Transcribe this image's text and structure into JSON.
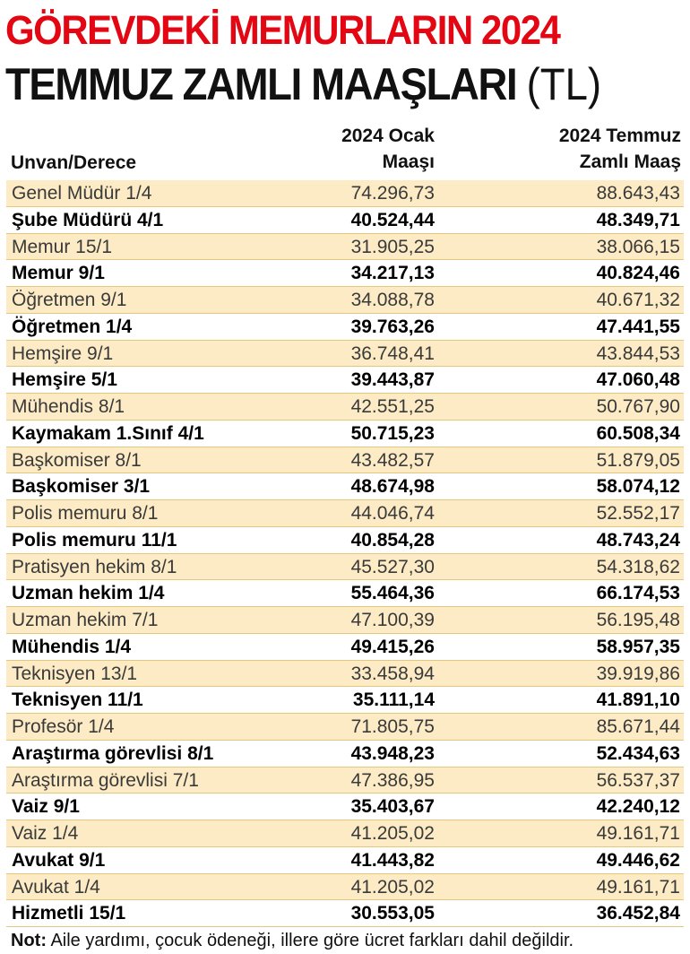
{
  "title": {
    "line1": "GÖREVDEKİ MEMURLARIN 2024",
    "line2": "TEMMUZ ZAMLI MAAŞLARI",
    "unit": "(TL)"
  },
  "headers": {
    "col0": "Unvan/Derece",
    "col1_line1": "2024 Ocak",
    "col1_line2": "Maaşı",
    "col2_line1": "2024 Temmuz",
    "col2_line2": "Zamlı Maaş"
  },
  "rows": [
    [
      "Genel Müdür 1/4",
      "74.296,73",
      "88.643,43"
    ],
    [
      "Şube Müdürü 4/1",
      "40.524,44",
      "48.349,71"
    ],
    [
      "Memur 15/1",
      "31.905,25",
      "38.066,15"
    ],
    [
      "Memur 9/1",
      "34.217,13",
      "40.824,46"
    ],
    [
      "Öğretmen 9/1",
      "34.088,78",
      "40.671,32"
    ],
    [
      "Öğretmen 1/4",
      "39.763,26",
      "47.441,55"
    ],
    [
      "Hemşire 9/1",
      "36.748,41",
      "43.844,53"
    ],
    [
      "Hemşire 5/1",
      "39.443,87",
      "47.060,48"
    ],
    [
      "Mühendis 8/1",
      "42.551,25",
      "50.767,90"
    ],
    [
      "Kaymakam 1.Sınıf 4/1",
      "50.715,23",
      "60.508,34"
    ],
    [
      "Başkomiser 8/1",
      "43.482,57",
      "51.879,05"
    ],
    [
      "Başkomiser 3/1",
      "48.674,98",
      "58.074,12"
    ],
    [
      "Polis memuru 8/1",
      "44.046,74",
      "52.552,17"
    ],
    [
      "Polis memuru 11/1",
      "40.854,28",
      "48.743,24"
    ],
    [
      "Pratisyen hekim 8/1",
      "45.527,30",
      "54.318,62"
    ],
    [
      "Uzman hekim 1/4",
      "55.464,36",
      "66.174,53"
    ],
    [
      "Uzman hekim 7/1",
      "47.100,39",
      "56.195,48"
    ],
    [
      "Mühendis 1/4",
      "49.415,26",
      "58.957,35"
    ],
    [
      "Teknisyen 13/1",
      "33.458,94",
      "39.919,86"
    ],
    [
      "Teknisyen 11/1",
      "35.111,14",
      "41.891,10"
    ],
    [
      "Profesör 1/4",
      "71.805,75",
      "85.671,44"
    ],
    [
      "Araştırma görevlisi 8/1",
      "43.948,23",
      "52.434,63"
    ],
    [
      "Araştırma görevlisi 7/1",
      "47.386,95",
      "56.537,37"
    ],
    [
      "Vaiz 9/1",
      "35.403,67",
      "42.240,12"
    ],
    [
      "Vaiz 1/4",
      "41.205,02",
      "49.161,71"
    ],
    [
      "Avukat 9/1",
      "41.443,82",
      "49.446,62"
    ],
    [
      "Avukat 1/4",
      "41.205,02",
      "49.161,71"
    ],
    [
      "Hizmetli 15/1",
      "30.553,05",
      "36.452,84"
    ]
  ],
  "note": {
    "label": "Not:",
    "text": " Aile yardımı, çocuk ödeneği, illere göre ücret farkları dahil değildir."
  },
  "colors": {
    "title_red": "#e30613",
    "row_shade": "#fcebc4",
    "row_border": "#e3c77d"
  }
}
